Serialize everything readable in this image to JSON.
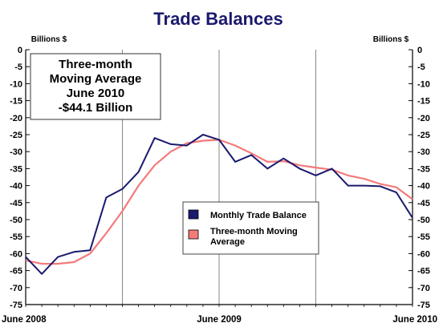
{
  "chart_data": {
    "type": "line",
    "title": "Trade Balances",
    "ylabel_left": "Billions $",
    "ylabel_right": "Billions $",
    "ylim": [
      -75,
      0
    ],
    "yticks": [
      0,
      -5,
      -10,
      -15,
      -20,
      -25,
      -30,
      -35,
      -40,
      -45,
      -50,
      -55,
      -60,
      -65,
      -70,
      -75
    ],
    "x": [
      "2008-06",
      "2008-07",
      "2008-08",
      "2008-09",
      "2008-10",
      "2008-11",
      "2008-12",
      "2009-01",
      "2009-02",
      "2009-03",
      "2009-04",
      "2009-05",
      "2009-06",
      "2009-07",
      "2009-08",
      "2009-09",
      "2009-10",
      "2009-11",
      "2009-12",
      "2010-01",
      "2010-02",
      "2010-03",
      "2010-04",
      "2010-05",
      "2010-06"
    ],
    "xtick_labels": [
      {
        "at": "2008-06",
        "label": "June 2008"
      },
      {
        "at": "2009-06",
        "label": "June 2009"
      },
      {
        "at": "2010-06",
        "label": "June 2010"
      }
    ],
    "series": [
      {
        "name": "Monthly Trade Balance",
        "color": "#1a1a6e",
        "values": [
          -61,
          -66,
          -61,
          -59.5,
          -59,
          -43.5,
          -41,
          -36,
          -26,
          -27.8,
          -28.2,
          -25,
          -26.5,
          -33,
          -31,
          -35,
          -32,
          -35,
          -37,
          -35,
          -40,
          -40,
          -40.2,
          -42,
          -49.5
        ]
      },
      {
        "name": "Three-month Moving Average",
        "color": "#f47a7a",
        "values": [
          -62,
          -63,
          -63,
          -62.5,
          -60,
          -54,
          -47.5,
          -40,
          -34,
          -30,
          -27.5,
          -26.8,
          -26.5,
          -28.2,
          -30.5,
          -33,
          -32.8,
          -34,
          -34.7,
          -35.3,
          -37,
          -38,
          -39.5,
          -40.5,
          -44
        ]
      }
    ],
    "annotation": {
      "lines": [
        "Three-month",
        "Moving Average",
        "June 2010",
        "-$44.1 Billion"
      ]
    },
    "legend_position": "center-right",
    "grid": "vertical-lines",
    "colors": {
      "title": "#1a1a6e",
      "grid": "#7a7a7a",
      "axis": "#000000"
    }
  }
}
